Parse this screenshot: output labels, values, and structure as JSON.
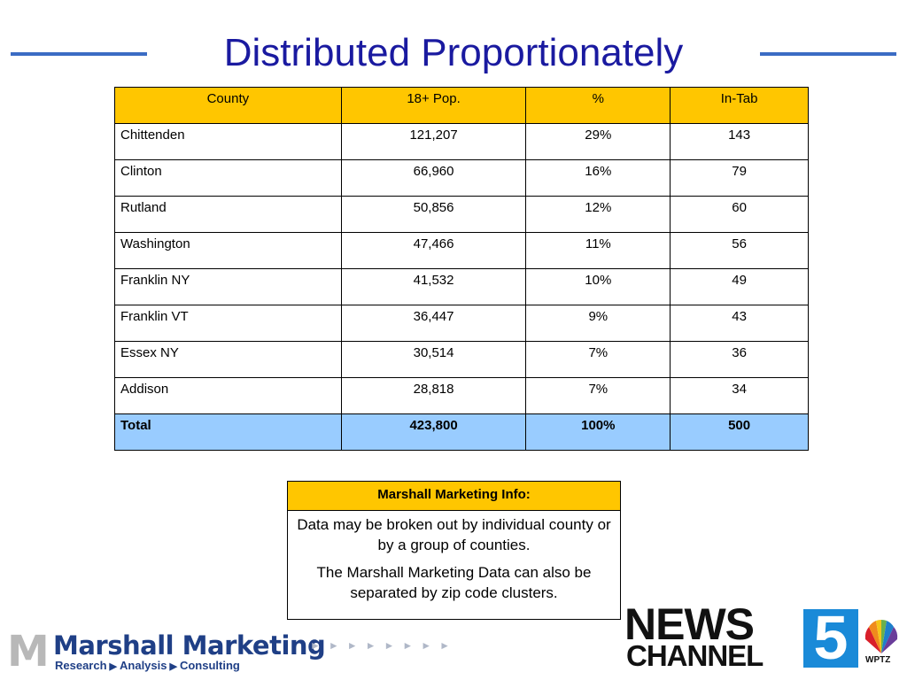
{
  "title": "Distributed Proportionately",
  "table": {
    "headers": [
      "County",
      "18+ Pop.",
      "%",
      "In-Tab"
    ],
    "rows": [
      [
        "Chittenden",
        "121,207",
        "29%",
        "143"
      ],
      [
        "Clinton",
        "66,960",
        "16%",
        "79"
      ],
      [
        "Rutland",
        "50,856",
        "12%",
        "60"
      ],
      [
        "Washington",
        "47,466",
        "11%",
        "56"
      ],
      [
        "Franklin NY",
        "41,532",
        "10%",
        "49"
      ],
      [
        "Franklin VT",
        "36,447",
        "9%",
        "43"
      ],
      [
        "Essex NY",
        "30,514",
        "7%",
        "36"
      ],
      [
        "Addison",
        "28,818",
        "7%",
        "34"
      ]
    ],
    "total": [
      "Total",
      "423,800",
      "100%",
      "500"
    ]
  },
  "info": {
    "heading": "Marshall Marketing Info:",
    "para1": "Data may be broken out by individual county or by a group of counties.",
    "para2": "The Marshall Marketing Data can also be separated by zip code clusters."
  },
  "footer": {
    "mm_logo": {
      "name": "Marshall Marketing",
      "tag1": "Research",
      "tag2": "Analysis",
      "tag3": "Consulting"
    },
    "station_logo": {
      "news": "NEWS",
      "channel": "CHANNEL",
      "number": "5",
      "call_letters": "WPTZ"
    }
  },
  "colors": {
    "title": "#1a1aa0",
    "header_fill": "#ffc600",
    "total_fill": "#99ccff",
    "rule": "#3b6cc4"
  }
}
